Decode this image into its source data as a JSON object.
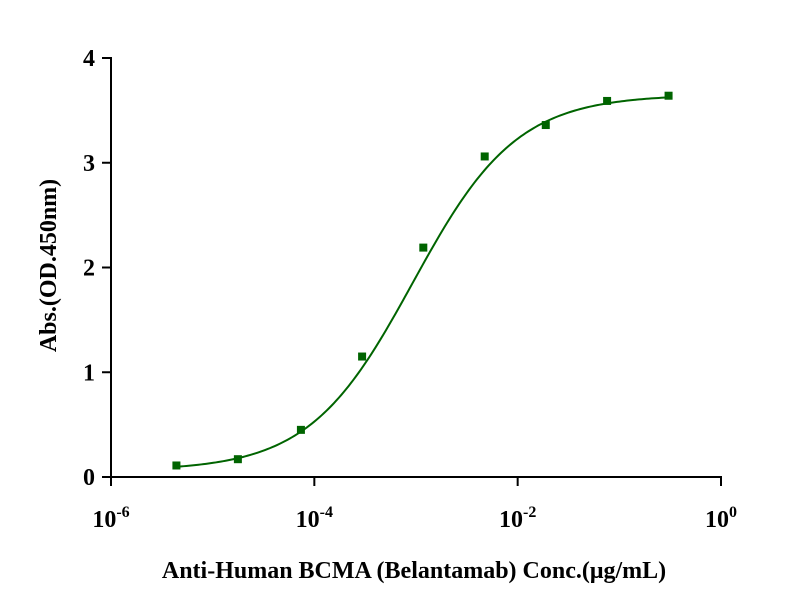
{
  "chart_data": {
    "type": "scatter",
    "title": "",
    "xlabel": "Anti-Human BCMA (Belantamab) Conc.(μg/mL)",
    "ylabel": "Abs.(OD.450nm)",
    "x_scale": "log",
    "xlim": [
      1e-06,
      1
    ],
    "ylim": [
      0,
      4
    ],
    "x_ticks": [
      {
        "base": "10",
        "exp": "-6",
        "value": 1e-06
      },
      {
        "base": "10",
        "exp": "-4",
        "value": 0.0001
      },
      {
        "base": "10",
        "exp": "-2",
        "value": 0.01
      },
      {
        "base": "10",
        "exp": "0",
        "value": 1
      }
    ],
    "y_ticks": [
      "0",
      "1",
      "2",
      "3",
      "4"
    ],
    "grid": false,
    "legend": "none",
    "color": "#006400",
    "series": [
      {
        "marker": "square",
        "x": [
          4.4e-06,
          1.77e-05,
          7.38e-05,
          0.000295,
          0.00118,
          0.00474,
          0.0189,
          0.0758,
          0.305
        ],
        "y": [
          0.11,
          0.17,
          0.45,
          1.15,
          2.19,
          3.06,
          3.36,
          3.59,
          3.64
        ]
      }
    ],
    "fit": {
      "model": "4PL",
      "bottom": 0.06,
      "top": 3.65,
      "ec50": 0.00093,
      "hill": 0.85
    }
  }
}
